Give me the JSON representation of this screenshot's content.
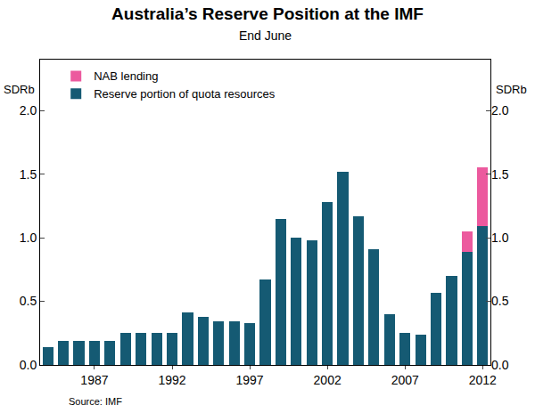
{
  "chart_data": {
    "type": "bar",
    "title": "Australia’s Reserve Position at the IMF",
    "subtitle": "End June",
    "y_label": "SDRb",
    "y2_label": "SDRb",
    "source": "Source: IMF",
    "x": [
      1984,
      1985,
      1986,
      1987,
      1988,
      1989,
      1990,
      1991,
      1992,
      1993,
      1994,
      1995,
      1996,
      1997,
      1998,
      1999,
      2000,
      2001,
      2002,
      2003,
      2004,
      2005,
      2006,
      2007,
      2008,
      2009,
      2010,
      2011,
      2012
    ],
    "series": [
      {
        "name": "Reserve portion of quota resources",
        "color": "#155a73",
        "values": [
          0.14,
          0.19,
          0.19,
          0.19,
          0.19,
          0.25,
          0.25,
          0.25,
          0.25,
          0.41,
          0.38,
          0.34,
          0.34,
          0.33,
          0.67,
          1.15,
          1.0,
          0.98,
          1.28,
          1.52,
          1.17,
          0.91,
          0.4,
          0.25,
          0.24,
          0.57,
          0.7,
          0.89,
          1.09
        ]
      },
      {
        "name": "NAB lending",
        "color": "#ec5a9e",
        "values": [
          null,
          null,
          null,
          null,
          null,
          null,
          null,
          null,
          null,
          null,
          null,
          null,
          null,
          null,
          null,
          null,
          null,
          null,
          null,
          null,
          null,
          null,
          null,
          null,
          null,
          null,
          null,
          0.16,
          0.46
        ]
      }
    ],
    "stacked": true,
    "xlim": [
      1983.5,
      2012.5
    ],
    "xticks": [
      1987,
      1992,
      1997,
      2002,
      2007,
      2012
    ],
    "ylim": [
      0,
      2.4
    ],
    "yticks": [
      {
        "value": 0,
        "label": "0.0"
      },
      0.5,
      {
        "value": 1,
        "label": "1.0"
      },
      1.5,
      {
        "value": 2,
        "label": "2.0"
      }
    ],
    "y2lim": [
      0,
      2.4
    ],
    "y2ticks": [
      {
        "value": 0,
        "label": "0.0"
      },
      0.5,
      {
        "value": 1,
        "label": "1.0"
      },
      1.5,
      {
        "value": 2,
        "label": "2.0"
      }
    ],
    "grid": false,
    "legend": "upper left"
  }
}
